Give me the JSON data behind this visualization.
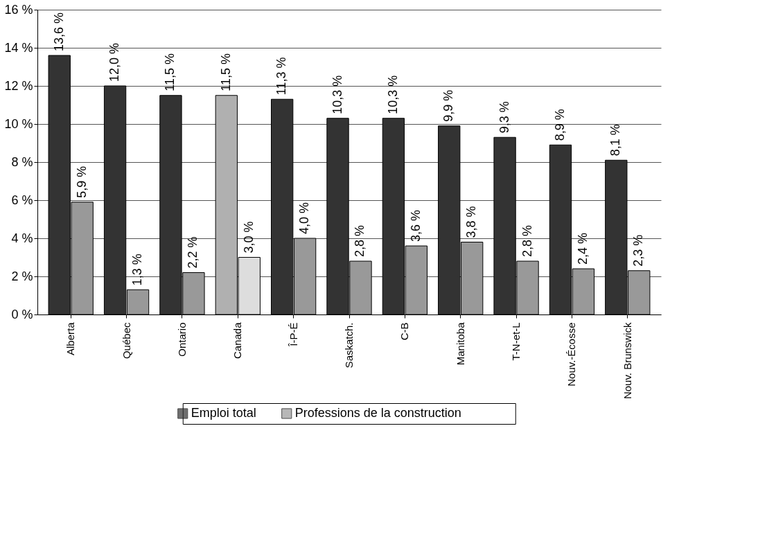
{
  "chart_data": {
    "type": "bar",
    "categories": [
      "Alberta",
      "Québec",
      "Ontario",
      "Canada",
      "Î-P-É",
      "Saskatch.",
      "C-B",
      "Manitoba",
      "T-N-et-L",
      "Nouv.-Écosse",
      "Nouv. Brunswick"
    ],
    "series": [
      {
        "name": "Emploi total",
        "color": "#333333",
        "colors": [
          "#333333",
          "#333333",
          "#333333",
          "#b0b0b0",
          "#333333",
          "#333333",
          "#333333",
          "#333333",
          "#333333",
          "#333333",
          "#333333"
        ],
        "values": [
          13.6,
          12.0,
          11.5,
          11.5,
          11.3,
          10.3,
          10.3,
          9.9,
          9.3,
          8.9,
          8.1
        ],
        "value_labels": [
          "13,6 %",
          "12,0 %",
          "11,5 %",
          "11,5 %",
          "11,3 %",
          "10,3 %",
          "10,3 %",
          "9,9 %",
          "9,3 %",
          "8,9 %",
          "8,1 %"
        ]
      },
      {
        "name": "Professions de la construction",
        "color": "#999999",
        "colors": [
          "#999999",
          "#999999",
          "#999999",
          "#dddddd",
          "#999999",
          "#999999",
          "#999999",
          "#999999",
          "#999999",
          "#999999",
          "#999999"
        ],
        "values": [
          5.9,
          1.3,
          2.2,
          3.0,
          4.0,
          2.8,
          3.6,
          3.8,
          2.8,
          2.4,
          2.3
        ],
        "value_labels": [
          "5,9 %",
          "1,3 %",
          "2,2 %",
          "3,0 %",
          "4,0 %",
          "2,8 %",
          "3,6 %",
          "3,8 %",
          "2,8 %",
          "2,4 %",
          "2,3 %"
        ]
      }
    ],
    "ylim": [
      0,
      16
    ],
    "yticks": [
      {
        "value": 0,
        "label": "0 %"
      },
      {
        "value": 2,
        "label": "2 %"
      },
      {
        "value": 4,
        "label": "4 %"
      },
      {
        "value": 6,
        "label": "6 %"
      },
      {
        "value": 8,
        "label": "8 %"
      },
      {
        "value": 10,
        "label": "10 %"
      },
      {
        "value": 12,
        "label": "12 %"
      },
      {
        "value": 14,
        "label": "14 %"
      },
      {
        "value": 16,
        "label": "16 %"
      }
    ],
    "grid": "y",
    "legend": "bottom"
  }
}
